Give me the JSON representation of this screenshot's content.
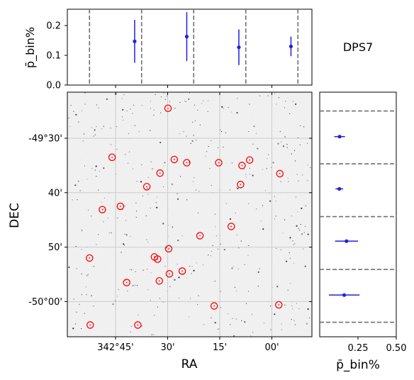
{
  "chart_data": [
    {
      "id": "top",
      "type": "scatter",
      "ylabel": "p̄_bin%",
      "yticks": [
        "0.0",
        "0.1",
        "0.2"
      ],
      "ylim": [
        0,
        0.255
      ],
      "bin_edges_ra_arcmin": [
        -7.5,
        7.5,
        22.5,
        37.5,
        52.5
      ],
      "points": [
        {
          "x": 5.5,
          "y": 0.147,
          "err": 0.072
        },
        {
          "x": 20.5,
          "y": 0.163,
          "err": 0.082
        },
        {
          "x": 35.5,
          "y": 0.127,
          "err": 0.06
        },
        {
          "x": 50.5,
          "y": 0.13,
          "err": 0.033
        }
      ]
    },
    {
      "id": "map",
      "type": "scatter",
      "xlabel": "RA",
      "ylabel": "DEC",
      "xticks": [
        {
          "v": 0,
          "label": "342°45'"
        },
        {
          "v": 15,
          "label": "30'"
        },
        {
          "v": 30,
          "label": "15'"
        },
        {
          "v": 45,
          "label": "00'"
        }
      ],
      "yticks": [
        {
          "v": 30,
          "label": "-49°30'"
        },
        {
          "v": 40,
          "label": "40'"
        },
        {
          "v": 50,
          "label": "50'"
        },
        {
          "v": 60,
          "label": "-50°00'"
        }
      ],
      "sources": [
        [
          -7.3,
          64.3
        ],
        [
          -7.5,
          52.0
        ],
        [
          -3.8,
          43.1
        ],
        [
          -1.0,
          33.5
        ],
        [
          1.4,
          42.5
        ],
        [
          3.2,
          56.5
        ],
        [
          6.4,
          64.3
        ],
        [
          9.0,
          38.9
        ],
        [
          11.2,
          51.8
        ],
        [
          12.1,
          52.2
        ],
        [
          12.6,
          56.2
        ],
        [
          12.8,
          36.4
        ],
        [
          15.5,
          54.9
        ],
        [
          15.3,
          50.3
        ],
        [
          15.1,
          24.5
        ],
        [
          16.9,
          33.9
        ],
        [
          19.2,
          54.4
        ],
        [
          20.5,
          34.5
        ],
        [
          24.3,
          47.9
        ],
        [
          28.4,
          60.8
        ],
        [
          29.7,
          34.5
        ],
        [
          33.3,
          46.2
        ],
        [
          36.0,
          38.5
        ],
        [
          36.4,
          35.0
        ],
        [
          38.6,
          34.0
        ],
        [
          47.3,
          36.5
        ],
        [
          47.0,
          60.6
        ]
      ]
    },
    {
      "id": "right",
      "type": "scatter",
      "xlabel": "p̄_bin%",
      "xticks": [
        "0.25",
        "0.50"
      ],
      "xlim": [
        0,
        0.5
      ],
      "bin_edges_dec_arcmin": [
        25,
        34.7,
        44.4,
        54.1,
        63.8
      ],
      "points": [
        {
          "y": 29.7,
          "x": 0.13,
          "err": 0.035
        },
        {
          "y": 39.3,
          "x": 0.128,
          "err": 0.025
        },
        {
          "y": 48.9,
          "x": 0.175,
          "err": 0.075
        },
        {
          "y": 58.8,
          "x": 0.16,
          "err": 0.1
        }
      ]
    }
  ],
  "field_label": "DPS7",
  "colors": {
    "point": "#2020e0",
    "circle": "#ff0000",
    "dashed": "#707070",
    "grid": "#cccccc"
  }
}
